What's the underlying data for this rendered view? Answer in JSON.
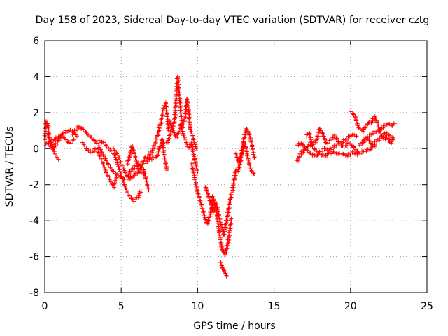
{
  "chart_data": {
    "type": "scatter",
    "title": "Day 158 of 2023, Sidereal Day-to-day VTEC variation (SDTVAR) for receiver cztg",
    "xlabel": "GPS time / hours",
    "ylabel": "SDTVAR / TECUs",
    "xlim": [
      0,
      25
    ],
    "ylim": [
      -8,
      6
    ],
    "xticks": [
      0,
      5,
      10,
      15,
      20,
      25
    ],
    "yticks": [
      -8,
      -6,
      -4,
      -2,
      0,
      2,
      4,
      6
    ],
    "grid": true,
    "marker": "+",
    "series": [
      {
        "name": "SDTVAR",
        "color": "#ff0000",
        "tracks": [
          [
            [
              0.0,
              0.5
            ],
            [
              0.1,
              1.5
            ],
            [
              0.2,
              1.4
            ],
            [
              0.3,
              0.5
            ],
            [
              0.5,
              0.2
            ],
            [
              0.7,
              -0.4
            ],
            [
              0.9,
              -0.6
            ]
          ],
          [
            [
              0.0,
              0.2
            ],
            [
              0.3,
              0.4
            ],
            [
              0.6,
              0.5
            ],
            [
              1.0,
              0.7
            ],
            [
              1.3,
              0.6
            ],
            [
              1.6,
              0.3
            ],
            [
              1.9,
              0.5
            ]
          ],
          [
            [
              0.2,
              0.3
            ],
            [
              0.5,
              0.0
            ],
            [
              0.8,
              0.3
            ],
            [
              1.1,
              0.8
            ],
            [
              1.5,
              1.0
            ],
            [
              1.8,
              1.0
            ],
            [
              2.1,
              0.7
            ]
          ],
          [
            [
              1.8,
              0.8
            ],
            [
              2.2,
              1.2
            ],
            [
              2.5,
              1.1
            ],
            [
              2.8,
              0.8
            ],
            [
              3.2,
              0.5
            ],
            [
              3.5,
              0.2
            ],
            [
              3.8,
              -0.3
            ],
            [
              4.1,
              -0.8
            ],
            [
              4.4,
              -1.2
            ],
            [
              4.8,
              -1.5
            ],
            [
              5.2,
              -1.7
            ]
          ],
          [
            [
              2.5,
              0.3
            ],
            [
              2.8,
              -0.1
            ],
            [
              3.1,
              -0.2
            ],
            [
              3.4,
              0.0
            ],
            [
              3.7,
              -0.6
            ],
            [
              4.0,
              -1.3
            ],
            [
              4.3,
              -1.8
            ],
            [
              4.5,
              -2.1
            ],
            [
              4.7,
              -1.6
            ]
          ],
          [
            [
              3.6,
              0.4
            ],
            [
              3.9,
              0.3
            ],
            [
              4.2,
              0.0
            ],
            [
              4.6,
              -0.4
            ],
            [
              4.9,
              -1.2
            ],
            [
              5.2,
              -2.0
            ],
            [
              5.5,
              -2.6
            ],
            [
              5.8,
              -2.9
            ],
            [
              6.1,
              -2.7
            ],
            [
              6.3,
              -2.3
            ]
          ],
          [
            [
              4.5,
              0.0
            ],
            [
              4.8,
              -0.4
            ],
            [
              5.1,
              -1.0
            ],
            [
              5.4,
              -1.6
            ],
            [
              5.6,
              -1.3
            ],
            [
              5.9,
              -1.0
            ],
            [
              6.2,
              -0.9
            ],
            [
              6.5,
              -1.2
            ],
            [
              6.7,
              -2.0
            ],
            [
              6.8,
              -2.3
            ]
          ],
          [
            [
              5.5,
              -1.7
            ],
            [
              5.8,
              -1.5
            ],
            [
              6.1,
              -1.3
            ],
            [
              6.3,
              -0.9
            ],
            [
              6.6,
              -0.5
            ],
            [
              6.9,
              -0.6
            ],
            [
              7.1,
              -0.5
            ]
          ],
          [
            [
              5.4,
              -0.8
            ],
            [
              5.6,
              -0.3
            ],
            [
              5.7,
              0.2
            ],
            [
              5.9,
              -0.4
            ],
            [
              6.2,
              -1.3
            ],
            [
              6.5,
              -1.4
            ]
          ],
          [
            [
              6.6,
              -0.8
            ],
            [
              6.9,
              -0.3
            ],
            [
              7.2,
              0.2
            ],
            [
              7.4,
              0.8
            ],
            [
              7.6,
              1.5
            ],
            [
              7.8,
              2.3
            ],
            [
              7.9,
              2.6
            ],
            [
              8.0,
              1.9
            ],
            [
              8.1,
              1.0
            ]
          ],
          [
            [
              7.3,
              -0.5
            ],
            [
              7.5,
              0.0
            ],
            [
              7.7,
              0.5
            ],
            [
              7.8,
              -0.3
            ],
            [
              7.9,
              -0.8
            ],
            [
              8.0,
              -1.2
            ]
          ],
          [
            [
              8.0,
              0.3
            ],
            [
              8.3,
              1.0
            ],
            [
              8.5,
              1.6
            ],
            [
              8.6,
              2.9
            ],
            [
              8.7,
              4.0
            ],
            [
              8.8,
              3.0
            ],
            [
              8.9,
              2.0
            ],
            [
              9.0,
              1.2
            ],
            [
              9.2,
              1.8
            ],
            [
              9.3,
              2.8
            ],
            [
              9.4,
              2.2
            ],
            [
              9.5,
              1.2
            ],
            [
              9.7,
              0.6
            ],
            [
              9.9,
              0.0
            ]
          ],
          [
            [
              8.2,
              1.5
            ],
            [
              8.4,
              1.0
            ],
            [
              8.6,
              0.6
            ],
            [
              8.9,
              1.3
            ],
            [
              9.1,
              0.7
            ],
            [
              9.4,
              0.0
            ],
            [
              9.6,
              0.3
            ],
            [
              9.8,
              -0.6
            ],
            [
              10.0,
              -1.3
            ]
          ],
          [
            [
              9.6,
              -0.8
            ],
            [
              9.8,
              -1.6
            ],
            [
              10.0,
              -2.4
            ],
            [
              10.2,
              -3.0
            ],
            [
              10.4,
              -3.6
            ],
            [
              10.6,
              -4.2
            ],
            [
              10.8,
              -3.8
            ],
            [
              11.0,
              -2.7
            ],
            [
              11.2,
              -3.3
            ],
            [
              11.4,
              -4.6
            ],
            [
              11.6,
              -5.6
            ],
            [
              11.8,
              -5.9
            ],
            [
              12.0,
              -5.2
            ],
            [
              12.2,
              -3.9
            ]
          ],
          [
            [
              10.5,
              -2.1
            ],
            [
              10.7,
              -2.6
            ],
            [
              11.0,
              -3.5
            ],
            [
              11.2,
              -3.0
            ],
            [
              11.5,
              -4.1
            ],
            [
              11.7,
              -4.8
            ],
            [
              11.9,
              -4.0
            ],
            [
              12.1,
              -3.0
            ],
            [
              12.3,
              -2.2
            ],
            [
              12.5,
              -1.2
            ]
          ],
          [
            [
              11.5,
              -6.3
            ],
            [
              11.6,
              -6.6
            ],
            [
              11.8,
              -6.9
            ],
            [
              11.9,
              -7.1
            ]
          ],
          [
            [
              12.5,
              -0.3
            ],
            [
              12.7,
              -0.8
            ],
            [
              12.9,
              -0.2
            ],
            [
              13.1,
              0.3
            ],
            [
              13.3,
              -0.6
            ],
            [
              13.5,
              -1.2
            ],
            [
              13.7,
              -1.4
            ]
          ],
          [
            [
              12.6,
              -1.3
            ],
            [
              12.8,
              -0.8
            ],
            [
              13.0,
              0.5
            ],
            [
              13.2,
              1.1
            ],
            [
              13.4,
              0.8
            ],
            [
              13.6,
              0.0
            ],
            [
              13.7,
              -0.5
            ]
          ],
          [
            [
              16.5,
              -0.7
            ],
            [
              16.8,
              -0.2
            ],
            [
              17.1,
              0.0
            ],
            [
              17.4,
              0.3
            ],
            [
              17.7,
              -0.1
            ],
            [
              18.0,
              -0.2
            ],
            [
              18.3,
              0.0
            ],
            [
              18.6,
              -0.1
            ],
            [
              18.9,
              0.1
            ],
            [
              19.2,
              0.3
            ],
            [
              19.5,
              0.4
            ],
            [
              19.8,
              0.6
            ],
            [
              20.1,
              0.8
            ],
            [
              20.4,
              0.7
            ]
          ],
          [
            [
              16.5,
              0.2
            ],
            [
              16.8,
              0.3
            ],
            [
              17.1,
              0.0
            ],
            [
              17.4,
              -0.3
            ],
            [
              17.7,
              -0.4
            ],
            [
              18.0,
              -0.3
            ],
            [
              18.3,
              -0.4
            ],
            [
              18.6,
              -0.3
            ],
            [
              18.9,
              -0.2
            ],
            [
              19.2,
              -0.3
            ],
            [
              19.5,
              -0.3
            ],
            [
              19.8,
              -0.4
            ],
            [
              20.1,
              -0.2
            ],
            [
              20.4,
              -0.3
            ],
            [
              20.7,
              -0.2
            ],
            [
              21.0,
              -0.1
            ],
            [
              21.3,
              0.0
            ],
            [
              21.6,
              0.2
            ]
          ],
          [
            [
              17.1,
              0.7
            ],
            [
              17.3,
              0.9
            ],
            [
              17.5,
              0.2
            ],
            [
              17.8,
              0.5
            ],
            [
              18.0,
              1.1
            ],
            [
              18.2,
              0.8
            ],
            [
              18.4,
              0.3
            ],
            [
              18.7,
              0.5
            ],
            [
              19.0,
              0.7
            ],
            [
              19.3,
              0.2
            ],
            [
              19.6,
              0.1
            ],
            [
              19.9,
              0.3
            ],
            [
              20.2,
              0.1
            ],
            [
              20.5,
              -0.2
            ]
          ],
          [
            [
              20.0,
              2.1
            ],
            [
              20.3,
              1.8
            ],
            [
              20.5,
              1.2
            ],
            [
              20.8,
              1.0
            ],
            [
              21.1,
              1.4
            ],
            [
              21.4,
              1.5
            ],
            [
              21.6,
              1.8
            ],
            [
              21.8,
              1.3
            ],
            [
              22.0,
              0.8
            ],
            [
              22.2,
              0.5
            ],
            [
              22.4,
              0.7
            ],
            [
              22.6,
              0.3
            ],
            [
              22.8,
              0.5
            ]
          ],
          [
            [
              20.6,
              0.2
            ],
            [
              20.9,
              0.5
            ],
            [
              21.2,
              0.7
            ],
            [
              21.5,
              0.9
            ],
            [
              21.8,
              1.0
            ],
            [
              22.1,
              1.2
            ],
            [
              22.4,
              1.4
            ],
            [
              22.7,
              1.3
            ],
            [
              22.9,
              1.4
            ]
          ],
          [
            [
              20.8,
              0.3
            ],
            [
              21.1,
              0.6
            ],
            [
              21.4,
              0.2
            ],
            [
              21.7,
              0.4
            ],
            [
              22.0,
              0.6
            ],
            [
              22.3,
              0.9
            ],
            [
              22.6,
              0.7
            ],
            [
              22.8,
              0.6
            ]
          ]
        ]
      }
    ]
  }
}
